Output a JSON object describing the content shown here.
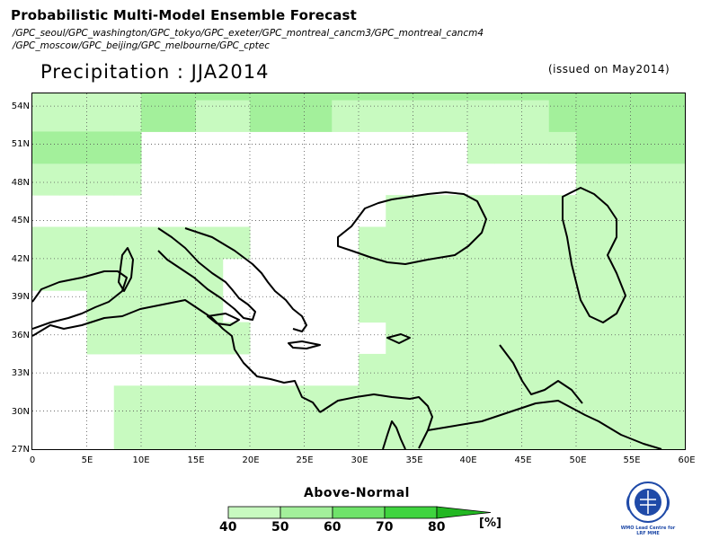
{
  "header": {
    "title": "Probabilistic Multi-Model Ensemble Forecast",
    "models_line1": "/GPC_seoul/GPC_washington/GPC_tokyo/GPC_exeter/GPC_montreal_cancm3/GPC_montreal_cancm4",
    "models_line2": "/GPC_moscow/GPC_beijing/GPC_melbourne/GPC_cptec",
    "variable_title": "Precipitation : JJA2014",
    "issued": "(issued on May2014)"
  },
  "map": {
    "lon_range": [
      0,
      60
    ],
    "lat_range": [
      27,
      55
    ],
    "lat_labels": [
      "54N",
      "51N",
      "48N",
      "45N",
      "42N",
      "39N",
      "36N",
      "33N",
      "30N",
      "27N"
    ],
    "lat_values": [
      54,
      51,
      48,
      45,
      42,
      39,
      36,
      33,
      30,
      27
    ],
    "lon_labels": [
      "0",
      "5E",
      "10E",
      "15E",
      "20E",
      "25E",
      "30E",
      "35E",
      "40E",
      "45E",
      "50E",
      "55E",
      "60E"
    ],
    "lon_values": [
      0,
      5,
      10,
      15,
      20,
      25,
      30,
      35,
      40,
      45,
      50,
      55,
      60
    ],
    "grid": "dotted",
    "cell_size_deg": 2.5,
    "colors": {
      "land_outline": "#000000",
      "c40": "#c8fac0",
      "c50": "#a3f09b",
      "c60": "#6fe36a",
      "c70": "#3fd43f",
      "c80": "#22b722"
    },
    "cells_50": [
      [
        4,
        20
      ],
      [
        5,
        20
      ],
      [
        4,
        21
      ],
      [
        5,
        21
      ],
      [
        6,
        21
      ],
      [
        7,
        21
      ],
      [
        8,
        21
      ],
      [
        9,
        21
      ],
      [
        10,
        21
      ],
      [
        11,
        21
      ],
      [
        12,
        21
      ],
      [
        13,
        21
      ],
      [
        14,
        21
      ],
      [
        15,
        21
      ],
      [
        16,
        21
      ],
      [
        17,
        21
      ],
      [
        18,
        21
      ],
      [
        19,
        21
      ],
      [
        20,
        21
      ],
      [
        21,
        21
      ],
      [
        22,
        21
      ],
      [
        23,
        21
      ],
      [
        8,
        20
      ],
      [
        9,
        20
      ],
      [
        10,
        20
      ],
      [
        19,
        20
      ],
      [
        20,
        20
      ],
      [
        21,
        20
      ],
      [
        22,
        20
      ],
      [
        23,
        20
      ],
      [
        0,
        19
      ],
      [
        1,
        19
      ],
      [
        2,
        19
      ],
      [
        3,
        19
      ],
      [
        20,
        19
      ],
      [
        21,
        19
      ],
      [
        22,
        19
      ],
      [
        23,
        19
      ]
    ],
    "cells_40": [
      [
        0,
        20
      ],
      [
        1,
        20
      ],
      [
        2,
        20
      ],
      [
        3,
        20
      ],
      [
        6,
        20
      ],
      [
        7,
        20
      ],
      [
        11,
        20
      ],
      [
        12,
        20
      ],
      [
        13,
        20
      ],
      [
        14,
        20
      ],
      [
        15,
        20
      ],
      [
        16,
        20
      ],
      [
        17,
        20
      ],
      [
        18,
        20
      ],
      [
        0,
        21
      ],
      [
        1,
        21
      ],
      [
        2,
        21
      ],
      [
        3,
        21
      ],
      [
        16,
        19
      ],
      [
        17,
        19
      ],
      [
        18,
        19
      ],
      [
        19,
        19
      ],
      [
        20,
        18
      ],
      [
        21,
        18
      ],
      [
        22,
        18
      ],
      [
        23,
        18
      ],
      [
        0,
        18
      ],
      [
        1,
        18
      ],
      [
        2,
        18
      ],
      [
        3,
        18
      ],
      [
        13,
        17
      ],
      [
        14,
        17
      ],
      [
        15,
        17
      ],
      [
        16,
        17
      ],
      [
        17,
        17
      ],
      [
        18,
        17
      ],
      [
        19,
        17
      ],
      [
        20,
        17
      ],
      [
        21,
        17
      ],
      [
        22,
        17
      ],
      [
        23,
        17
      ],
      [
        0,
        16
      ],
      [
        1,
        16
      ],
      [
        2,
        16
      ],
      [
        3,
        16
      ],
      [
        4,
        16
      ],
      [
        5,
        16
      ],
      [
        6,
        16
      ],
      [
        7,
        16
      ],
      [
        12,
        16
      ],
      [
        13,
        16
      ],
      [
        14,
        16
      ],
      [
        15,
        16
      ],
      [
        16,
        16
      ],
      [
        17,
        16
      ],
      [
        18,
        16
      ],
      [
        19,
        16
      ],
      [
        20,
        16
      ],
      [
        21,
        16
      ],
      [
        22,
        16
      ],
      [
        23,
        16
      ],
      [
        0,
        15
      ],
      [
        1,
        15
      ],
      [
        2,
        15
      ],
      [
        3,
        15
      ],
      [
        4,
        15
      ],
      [
        5,
        15
      ],
      [
        6,
        15
      ],
      [
        12,
        15
      ],
      [
        13,
        15
      ],
      [
        14,
        15
      ],
      [
        15,
        15
      ],
      [
        16,
        15
      ],
      [
        17,
        15
      ],
      [
        18,
        15
      ],
      [
        19,
        15
      ],
      [
        20,
        15
      ],
      [
        21,
        15
      ],
      [
        22,
        15
      ],
      [
        23,
        15
      ],
      [
        2,
        14
      ],
      [
        3,
        14
      ],
      [
        4,
        14
      ],
      [
        5,
        14
      ],
      [
        6,
        14
      ],
      [
        12,
        14
      ],
      [
        13,
        14
      ],
      [
        14,
        14
      ],
      [
        15,
        14
      ],
      [
        16,
        14
      ],
      [
        17,
        14
      ],
      [
        18,
        14
      ],
      [
        19,
        14
      ],
      [
        20,
        14
      ],
      [
        21,
        14
      ],
      [
        22,
        14
      ],
      [
        23,
        14
      ],
      [
        2,
        13
      ],
      [
        3,
        13
      ],
      [
        4,
        13
      ],
      [
        5,
        13
      ],
      [
        6,
        13
      ],
      [
        7,
        13
      ],
      [
        13,
        13
      ],
      [
        14,
        13
      ],
      [
        15,
        13
      ],
      [
        16,
        13
      ],
      [
        17,
        13
      ],
      [
        18,
        13
      ],
      [
        19,
        13
      ],
      [
        20,
        13
      ],
      [
        21,
        13
      ],
      [
        22,
        13
      ],
      [
        23,
        13
      ],
      [
        12,
        12
      ],
      [
        13,
        12
      ],
      [
        14,
        12
      ],
      [
        15,
        12
      ],
      [
        16,
        12
      ],
      [
        17,
        12
      ],
      [
        18,
        12
      ],
      [
        19,
        12
      ],
      [
        20,
        12
      ],
      [
        21,
        12
      ],
      [
        22,
        12
      ],
      [
        23,
        12
      ],
      [
        3,
        11
      ],
      [
        4,
        11
      ],
      [
        5,
        11
      ],
      [
        6,
        11
      ],
      [
        7,
        11
      ],
      [
        8,
        11
      ],
      [
        9,
        11
      ],
      [
        10,
        11
      ],
      [
        11,
        11
      ],
      [
        12,
        11
      ],
      [
        13,
        11
      ],
      [
        14,
        11
      ],
      [
        15,
        11
      ],
      [
        16,
        11
      ],
      [
        17,
        11
      ],
      [
        18,
        11
      ],
      [
        19,
        11
      ],
      [
        20,
        11
      ],
      [
        21,
        11
      ],
      [
        22,
        11
      ],
      [
        23,
        11
      ],
      [
        3,
        10
      ],
      [
        4,
        10
      ],
      [
        5,
        10
      ],
      [
        6,
        10
      ],
      [
        7,
        10
      ],
      [
        8,
        10
      ],
      [
        9,
        10
      ],
      [
        10,
        10
      ],
      [
        11,
        10
      ],
      [
        12,
        10
      ],
      [
        13,
        10
      ],
      [
        14,
        10
      ],
      [
        15,
        10
      ],
      [
        16,
        10
      ],
      [
        17,
        10
      ],
      [
        18,
        10
      ],
      [
        19,
        10
      ],
      [
        20,
        10
      ],
      [
        21,
        10
      ],
      [
        22,
        10
      ],
      [
        23,
        10
      ]
    ],
    "legend_labels": [
      "40",
      "50",
      "60",
      "70",
      "80"
    ],
    "legend_title": "Above-Normal",
    "unit": "[%]"
  },
  "logo": {
    "line1": "WMO Lead Centre for",
    "line2": "LRF MME"
  }
}
